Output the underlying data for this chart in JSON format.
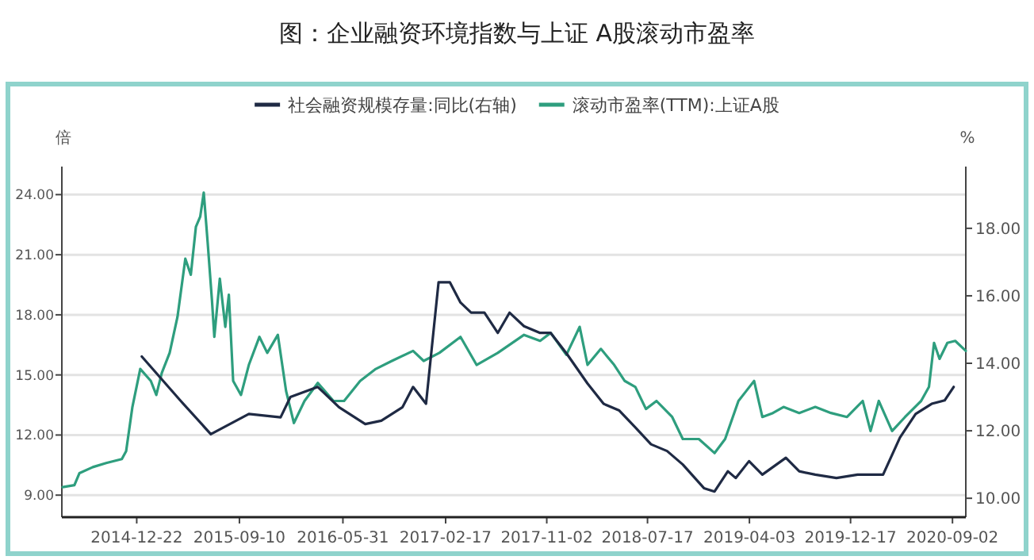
{
  "chart_data": {
    "type": "line",
    "title": "图：企业融资环境指数与上证 A股滚动市盈率",
    "ylabel": "倍",
    "y2label": "%",
    "legend": "top",
    "grid": "y",
    "marker": "none",
    "line_style": "solid",
    "xlim": [
      "2014-06-14",
      "2020-10-06"
    ],
    "xticks": [
      "2014-12-22",
      "2015-09-10",
      "2016-05-31",
      "2017-02-17",
      "2017-11-02",
      "2018-07-17",
      "2019-04-03",
      "2019-12-17",
      "2020-09-02"
    ],
    "ylim": [
      7.9,
      25.4
    ],
    "yticks": [
      {
        "value": 9,
        "label": "9.00"
      },
      {
        "value": 12,
        "label": "12.00"
      },
      {
        "value": 15,
        "label": "15.00"
      },
      {
        "value": 18,
        "label": "18.00"
      },
      {
        "value": 21,
        "label": "21.00"
      },
      {
        "value": 24,
        "label": "24.00"
      }
    ],
    "y2lim": [
      9.44,
      19.83
    ],
    "y2ticks": [
      {
        "value": 10,
        "label": "10.00"
      },
      {
        "value": 12,
        "label": "12.00"
      },
      {
        "value": 14,
        "label": "14.00"
      },
      {
        "value": 16,
        "label": "16.00"
      },
      {
        "value": 18,
        "label": "18.00"
      }
    ],
    "series": [
      {
        "name": "社会融资规模存量:同比(右轴)",
        "color": "#1f2a44",
        "axis": "y2",
        "x": [
          "2015-01-04",
          "2015-04-12",
          "2015-06-29",
          "2015-10-04",
          "2015-12-24",
          "2016-01-18",
          "2016-03-28",
          "2016-05-21",
          "2016-07-27",
          "2016-09-06",
          "2016-10-30",
          "2016-11-26",
          "2016-12-29",
          "2017-01-30",
          "2017-02-28",
          "2017-03-27",
          "2017-04-23",
          "2017-05-27",
          "2017-06-30",
          "2017-07-30",
          "2017-09-05",
          "2017-10-16",
          "2017-11-12",
          "2017-12-22",
          "2018-02-14",
          "2018-03-27",
          "2018-05-06",
          "2018-06-16",
          "2018-07-26",
          "2018-09-05",
          "2018-10-15",
          "2018-12-08",
          "2019-01-04",
          "2019-02-07",
          "2019-02-27",
          "2019-04-02",
          "2019-05-06",
          "2019-07-05",
          "2019-08-08",
          "2019-09-18",
          "2019-11-11",
          "2020-01-04",
          "2020-03-09",
          "2020-04-21",
          "2020-05-31",
          "2020-07-11",
          "2020-08-13",
          "2020-09-05"
        ],
        "values": [
          14.2,
          12.9,
          11.9,
          12.5,
          12.4,
          13.0,
          13.3,
          12.7,
          12.2,
          12.3,
          12.7,
          13.3,
          12.8,
          16.4,
          16.4,
          15.8,
          15.5,
          15.5,
          14.9,
          15.5,
          15.1,
          14.9,
          14.9,
          14.3,
          13.4,
          12.8,
          12.6,
          12.1,
          11.6,
          11.4,
          11.0,
          10.3,
          10.2,
          10.8,
          10.6,
          11.1,
          10.7,
          11.2,
          10.8,
          10.7,
          10.6,
          10.7,
          10.7,
          11.8,
          12.5,
          12.8,
          12.9,
          13.3
        ]
      },
      {
        "name": "滚动市盈率(TTM):上证A股",
        "color": "#2e9e7e",
        "x": [
          "2014-06-16",
          "2014-07-16",
          "2014-07-29",
          "2014-09-01",
          "2014-10-05",
          "2014-11-14",
          "2014-11-25",
          "2014-12-11",
          "2014-12-31",
          "2015-01-27",
          "2015-02-10",
          "2015-02-24",
          "2015-03-16",
          "2015-04-05",
          "2015-04-25",
          "2015-05-09",
          "2015-05-22",
          "2015-06-02",
          "2015-06-11",
          "2015-06-21",
          "2015-07-02",
          "2015-07-08",
          "2015-07-22",
          "2015-08-05",
          "2015-08-14",
          "2015-08-25",
          "2015-09-14",
          "2015-10-04",
          "2015-10-31",
          "2015-11-20",
          "2015-12-17",
          "2016-01-07",
          "2016-01-27",
          "2016-02-23",
          "2016-03-28",
          "2016-05-07",
          "2016-06-03",
          "2016-07-14",
          "2016-08-23",
          "2016-10-03",
          "2016-11-26",
          "2016-12-23",
          "2017-02-01",
          "2017-03-27",
          "2017-05-07",
          "2017-06-30",
          "2017-09-05",
          "2017-10-16",
          "2017-11-12",
          "2017-12-22",
          "2018-01-25",
          "2018-02-14",
          "2018-03-20",
          "2018-04-23",
          "2018-05-20",
          "2018-06-16",
          "2018-07-13",
          "2018-08-09",
          "2018-09-18",
          "2018-10-15",
          "2018-11-25",
          "2019-01-04",
          "2019-01-31",
          "2019-03-06",
          "2019-03-26",
          "2019-04-15",
          "2019-05-06",
          "2019-06-02",
          "2019-06-29",
          "2019-08-08",
          "2019-09-18",
          "2019-10-28",
          "2019-12-08",
          "2020-01-17",
          "2020-02-06",
          "2020-02-27",
          "2020-04-01",
          "2020-05-04",
          "2020-06-14",
          "2020-07-04",
          "2020-07-17",
          "2020-07-31",
          "2020-08-20",
          "2020-09-09",
          "2020-10-06"
        ],
        "values": [
          9.4,
          9.5,
          10.1,
          10.4,
          10.6,
          10.8,
          11.2,
          13.4,
          15.3,
          14.7,
          14.0,
          15.1,
          16.1,
          17.9,
          20.8,
          20.0,
          22.4,
          22.9,
          24.1,
          21.6,
          18.7,
          16.9,
          19.8,
          17.4,
          19.0,
          14.7,
          14.0,
          15.5,
          16.9,
          16.1,
          17.0,
          14.2,
          12.6,
          13.7,
          14.6,
          13.7,
          13.7,
          14.7,
          15.3,
          15.7,
          16.2,
          15.7,
          16.1,
          16.9,
          15.5,
          16.1,
          17.0,
          16.7,
          17.1,
          16.0,
          17.4,
          15.5,
          16.3,
          15.5,
          14.7,
          14.4,
          13.3,
          13.7,
          12.9,
          11.8,
          11.8,
          11.1,
          11.8,
          13.7,
          14.2,
          14.7,
          12.9,
          13.1,
          13.4,
          13.1,
          13.4,
          13.1,
          12.9,
          13.7,
          12.2,
          13.7,
          12.2,
          12.9,
          13.7,
          14.4,
          16.6,
          15.8,
          16.6,
          16.7,
          16.2
        ]
      }
    ]
  }
}
